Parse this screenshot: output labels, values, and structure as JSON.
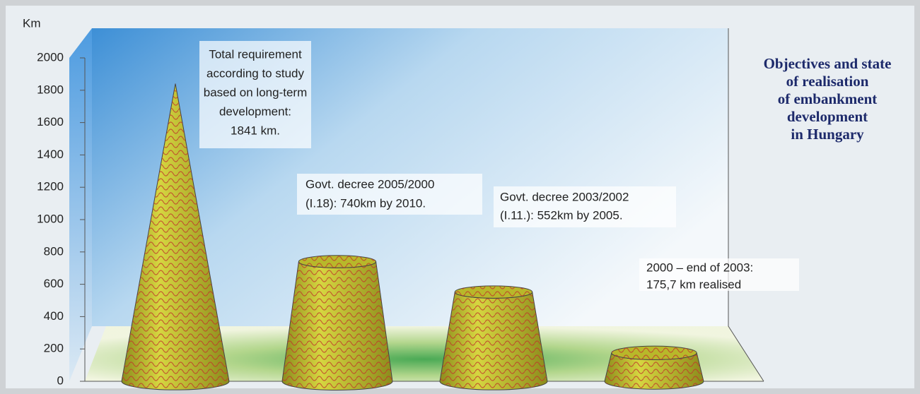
{
  "chart_data": {
    "type": "cone",
    "title": [
      "Objectives and state",
      "of realisation",
      "of embankment",
      "development",
      "in Hungary"
    ],
    "y_label": "Km",
    "categories": [
      null,
      null,
      null,
      null
    ],
    "values": [
      1841,
      740,
      552,
      175.7
    ],
    "color": "#b8b82a",
    "pattern_color": "#c0392b",
    "ylim": [
      0,
      2000
    ],
    "yticks": [
      0,
      200,
      400,
      600,
      800,
      1000,
      1200,
      1400,
      1600,
      1800,
      2000
    ],
    "annotations": [
      [
        "Total requirement",
        "according to study",
        "based on long-term",
        "development:",
        "1841 km."
      ],
      [
        "Govt. decree 2005/2000",
        "(I.18): 740km by 2010."
      ],
      [
        "Govt. decree 2003/2002",
        "(I.11.): 552km by 2005."
      ],
      [
        "2000 – end of 2003:",
        "175,7 km realised"
      ]
    ]
  }
}
